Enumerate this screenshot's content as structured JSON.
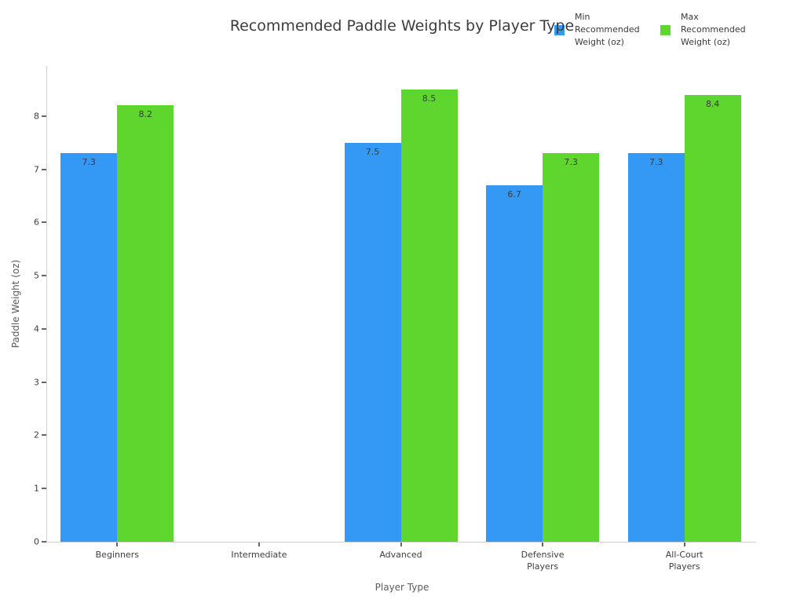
{
  "chart_data": {
    "type": "bar",
    "title": "Recommended Paddle Weights by Player Type",
    "xlabel": "Player Type",
    "ylabel": "Paddle Weight (oz)",
    "categories": [
      "Beginners",
      "Intermediate",
      "Advanced",
      "Defensive Players",
      "All-Court Players"
    ],
    "xtick_labels": [
      "Beginners",
      "Intermediate",
      "Advanced",
      "Defensive\nPlayers",
      "All-Court\nPlayers"
    ],
    "series": [
      {
        "name": "Min Recommended Weight (oz)",
        "legend_label": "Min\nRecommended\nWeight (oz)",
        "color": "#3498f5",
        "values": [
          7.3,
          null,
          7.5,
          6.7,
          7.3
        ]
      },
      {
        "name": "Max Recommended Weight (oz)",
        "legend_label": "Max\nRecommended\nWeight (oz)",
        "color": "#5fd62d",
        "values": [
          8.2,
          null,
          8.5,
          7.3,
          8.4
        ]
      }
    ],
    "ylim": [
      0,
      8.94
    ],
    "yticks": [
      0,
      1,
      2,
      3,
      4,
      5,
      6,
      7,
      8
    ],
    "grid": false,
    "legend_position": "top-right",
    "background_color": "#ffffff",
    "axis_line_color": "#d0d0d0"
  }
}
